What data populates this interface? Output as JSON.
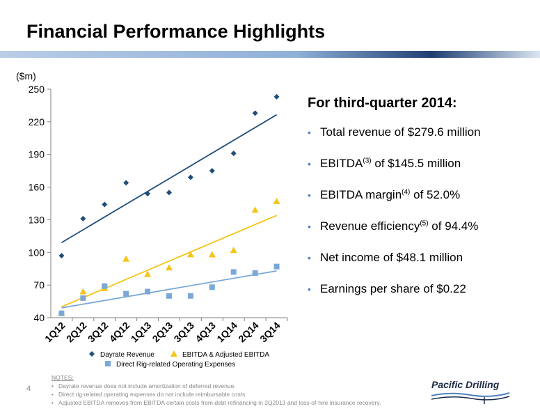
{
  "slide": {
    "title": "Financial Performance Highlights",
    "page_number": "4"
  },
  "colors": {
    "dayrate": "#1f4e79",
    "dayrate_trend": "#1f4e79",
    "ebitda": "#f5c518",
    "ebitda_trend": "#f5c518",
    "expenses": "#7aa8d8",
    "expenses_trend": "#7aa8d8"
  },
  "chart_data": {
    "type": "scatter",
    "unit_label": "($m)",
    "categories": [
      "1Q12",
      "2Q12",
      "3Q12",
      "4Q12",
      "1Q13",
      "2Q13",
      "3Q13",
      "4Q13",
      "1Q14",
      "2Q14",
      "3Q14"
    ],
    "ylim": [
      40,
      250
    ],
    "yticks": [
      40,
      70,
      100,
      130,
      160,
      190,
      220,
      250
    ],
    "grid": false,
    "legend_position": "bottom",
    "series": [
      {
        "name": "Dayrate Revenue",
        "marker": "diamond",
        "values": [
          97,
          131,
          144,
          164,
          154,
          155,
          169,
          175,
          191,
          228,
          243
        ],
        "trend": [
          109,
          226.5
        ]
      },
      {
        "name": "EBITDA & Adjusted EBITDA",
        "marker": "triangle",
        "values": [
          44,
          64,
          67,
          94,
          80,
          86,
          98,
          98,
          102,
          139,
          147
        ],
        "trend": [
          50,
          134
        ]
      },
      {
        "name": "Direct Rig-related Operating Expenses",
        "marker": "square",
        "values": [
          44,
          58,
          69,
          62,
          64,
          60,
          60,
          68,
          82,
          81,
          87
        ],
        "trend": [
          49,
          83
        ]
      }
    ]
  },
  "highlights": {
    "heading": "For third-quarter 2014:",
    "items": [
      {
        "pre": "Total revenue of $279.6 million",
        "sup": "",
        "post": ""
      },
      {
        "pre": "EBITDA",
        "sup": "(3)",
        "post": " of $145.5 million"
      },
      {
        "pre": "EBITDA margin",
        "sup": "(4)",
        "post": " of 52.0%"
      },
      {
        "pre": "Revenue efficiency",
        "sup": "(5)",
        "post": " of 94.4%"
      },
      {
        "pre": "Net income of $48.1 million",
        "sup": "",
        "post": ""
      },
      {
        "pre": "Earnings per share of $0.22",
        "sup": "",
        "post": ""
      }
    ]
  },
  "notes": {
    "title": "NOTES:",
    "items": [
      "Dayrate revenue does not include amortization of deferred revenue.",
      "Direct rig-related operating expenses do not include reimbursable costs.",
      "Adjusted EBITDA removes from EBITDA certain costs from debt refinancing in 2Q2013 and loss-of-hire insurance recovery."
    ]
  },
  "logo": {
    "text": "Pacific Drilling"
  }
}
